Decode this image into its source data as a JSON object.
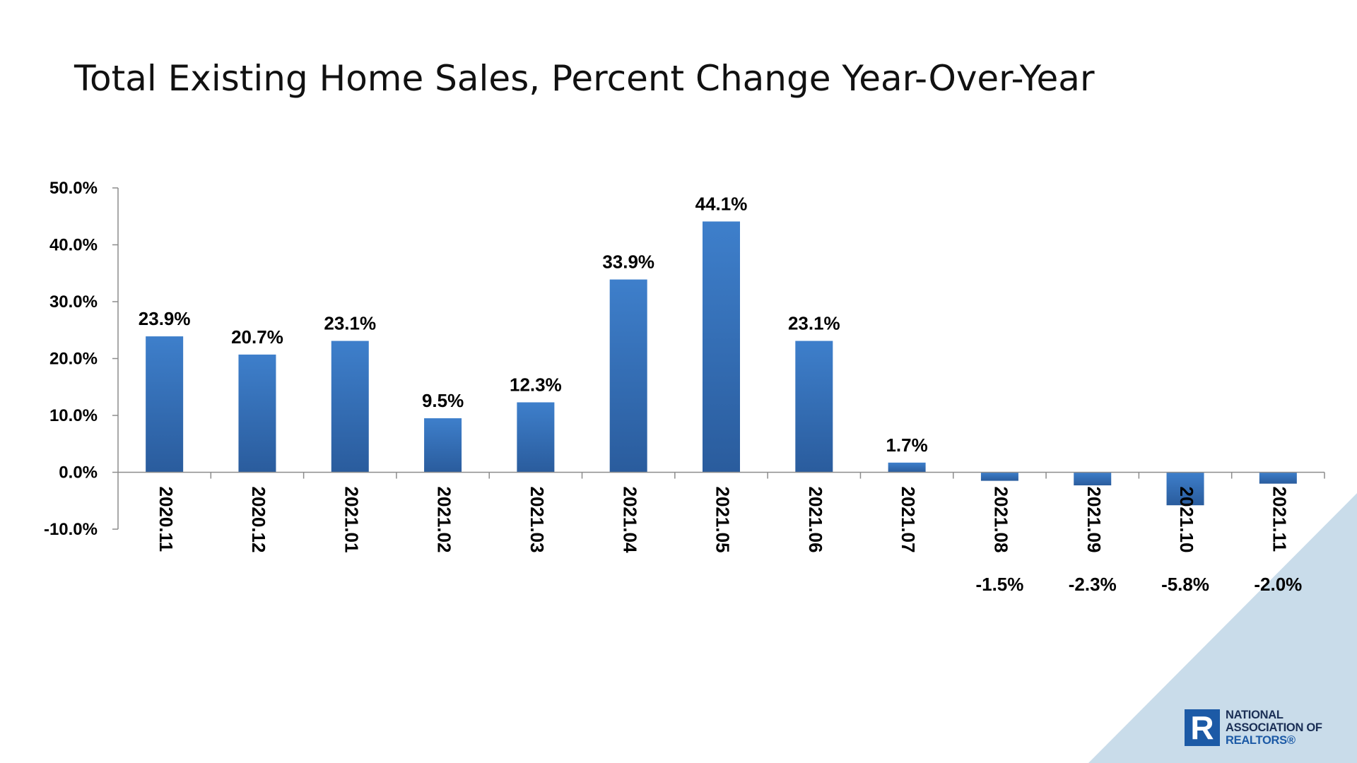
{
  "title": "Total Existing Home Sales, Percent Change Year-Over-Year",
  "colors": {
    "bar_top": "#3e7fcb",
    "bar_bottom": "#2a5c9d",
    "axis": "#8c8c8c",
    "text": "#000000",
    "corner": "#c9dcea",
    "logo_blue": "#1c5aa6",
    "logo_dark": "#1a2e55"
  },
  "logo": {
    "mark": "R",
    "line1": "NATIONAL",
    "line2": "ASSOCIATION OF",
    "line3": "REALTORS®"
  },
  "chart_data": {
    "type": "bar",
    "title": "Total Existing Home Sales, Percent Change Year-Over-Year",
    "xlabel": "",
    "ylabel": "",
    "categories": [
      "2020.11",
      "2020.12",
      "2021.01",
      "2021.02",
      "2021.03",
      "2021.04",
      "2021.05",
      "2021.06",
      "2021.07",
      "2021.08",
      "2021.09",
      "2021.10",
      "2021.11"
    ],
    "values": [
      23.9,
      20.7,
      23.1,
      9.5,
      12.3,
      33.9,
      44.1,
      23.1,
      1.7,
      -1.5,
      -2.3,
      -5.8,
      -2.0
    ],
    "data_labels": [
      "23.9%",
      "20.7%",
      "23.1%",
      "9.5%",
      "12.3%",
      "33.9%",
      "44.1%",
      "23.1%",
      "1.7%",
      "-1.5%",
      "-2.3%",
      "-5.8%",
      "-2.0%"
    ],
    "ylim": [
      -10,
      50
    ],
    "yticks": [
      -10,
      0,
      10,
      20,
      30,
      40,
      50
    ],
    "ytick_labels": [
      "-10.0%",
      "0.0%",
      "10.0%",
      "20.0%",
      "30.0%",
      "40.0%",
      "50.0%"
    ],
    "grid": false,
    "legend": "none"
  }
}
